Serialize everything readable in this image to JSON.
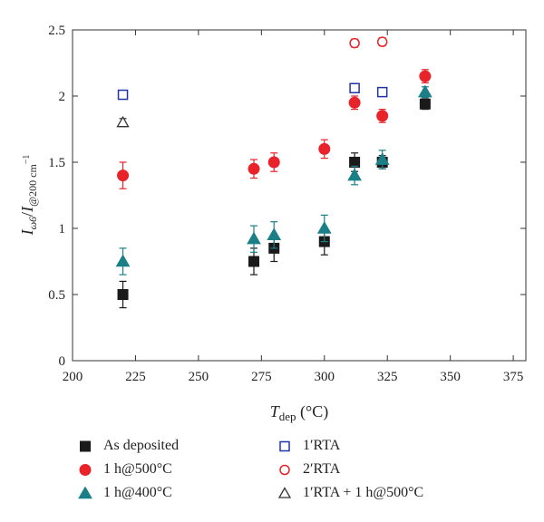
{
  "chart_data": {
    "type": "scatter",
    "title": "",
    "xlabel": "T_dep (°C)",
    "xlabel_main": "T",
    "xlabel_sub": "dep",
    "xlabel_unit": " (°C)",
    "ylabel": "I_ω6/I_@200 cm−1",
    "ylabel_main1": "I",
    "ylabel_sub1": "ω6",
    "ylabel_sep": "/",
    "ylabel_main2": "I",
    "ylabel_sub2": "@200 cm",
    "ylabel_sup2": "−1",
    "xlim": [
      200,
      380
    ],
    "ylim": [
      0,
      2.5
    ],
    "xticks": [
      "200",
      "225",
      "250",
      "275",
      "300",
      "325",
      "350",
      "375"
    ],
    "yticks": [
      "0",
      "0.5",
      "1",
      "1.5",
      "2",
      "2.5"
    ],
    "grid": false,
    "legend_position": "bottom",
    "series": [
      {
        "name": "As deposited",
        "color": "#1a1a1a",
        "marker": "filled-square",
        "points": [
          {
            "x": 220,
            "y": 0.5,
            "err": 0.1
          },
          {
            "x": 272,
            "y": 0.75,
            "err": 0.1
          },
          {
            "x": 280,
            "y": 0.85,
            "err": 0.1
          },
          {
            "x": 300,
            "y": 0.9,
            "err": 0.1
          },
          {
            "x": 312,
            "y": 1.5,
            "err": 0.07
          },
          {
            "x": 323,
            "y": 1.5,
            "err": 0.05
          },
          {
            "x": 340,
            "y": 1.94,
            "err": 0.04
          }
        ]
      },
      {
        "name": "1 h@500°C",
        "color": "#e8232a",
        "marker": "filled-circle",
        "points": [
          {
            "x": 220,
            "y": 1.4,
            "err": 0.1
          },
          {
            "x": 272,
            "y": 1.45,
            "err": 0.07
          },
          {
            "x": 280,
            "y": 1.5,
            "err": 0.07
          },
          {
            "x": 300,
            "y": 1.6,
            "err": 0.07
          },
          {
            "x": 312,
            "y": 1.95,
            "err": 0.05
          },
          {
            "x": 323,
            "y": 1.85,
            "err": 0.05
          },
          {
            "x": 340,
            "y": 2.15,
            "err": 0.05
          }
        ]
      },
      {
        "name": "1 h@400°C",
        "color": "#1a7f86",
        "marker": "filled-triangle",
        "points": [
          {
            "x": 220,
            "y": 0.75,
            "err": 0.1
          },
          {
            "x": 272,
            "y": 0.92,
            "err": 0.1
          },
          {
            "x": 280,
            "y": 0.95,
            "err": 0.1
          },
          {
            "x": 300,
            "y": 1.0,
            "err": 0.1
          },
          {
            "x": 312,
            "y": 1.4,
            "err": 0.07
          },
          {
            "x": 323,
            "y": 1.52,
            "err": 0.07
          },
          {
            "x": 340,
            "y": 2.03,
            "err": 0.04
          }
        ]
      },
      {
        "name": "1′RTA",
        "color": "#2233a8",
        "marker": "open-square",
        "points": [
          {
            "x": 220,
            "y": 2.01,
            "err": 0.03
          },
          {
            "x": 312,
            "y": 2.06,
            "err": 0.03
          },
          {
            "x": 323,
            "y": 2.03,
            "err": 0.03
          }
        ]
      },
      {
        "name": "2′RTA",
        "color": "#e8232a",
        "marker": "open-circle",
        "points": [
          {
            "x": 312,
            "y": 2.4,
            "err": 0.03
          },
          {
            "x": 323,
            "y": 2.41,
            "err": 0.03
          }
        ]
      },
      {
        "name": "1′RTA + 1 h@500°C",
        "color": "#333333",
        "marker": "open-triangle",
        "points": [
          {
            "x": 220,
            "y": 1.8,
            "err": 0.03
          }
        ]
      }
    ]
  },
  "legend": {
    "items": [
      {
        "label": "As deposited",
        "marker": "filled-square",
        "color": "#1a1a1a"
      },
      {
        "label": "1 h@500°C",
        "marker": "filled-circle",
        "color": "#e8232a"
      },
      {
        "label": "1 h@400°C",
        "marker": "filled-triangle",
        "color": "#1a7f86"
      },
      {
        "label": "1′RTA",
        "marker": "open-square",
        "color": "#2233a8"
      },
      {
        "label": "2′RTA",
        "marker": "open-circle",
        "color": "#e8232a"
      },
      {
        "label": "1′RTA + 1 h@500°C",
        "marker": "open-triangle",
        "color": "#333333"
      }
    ]
  }
}
